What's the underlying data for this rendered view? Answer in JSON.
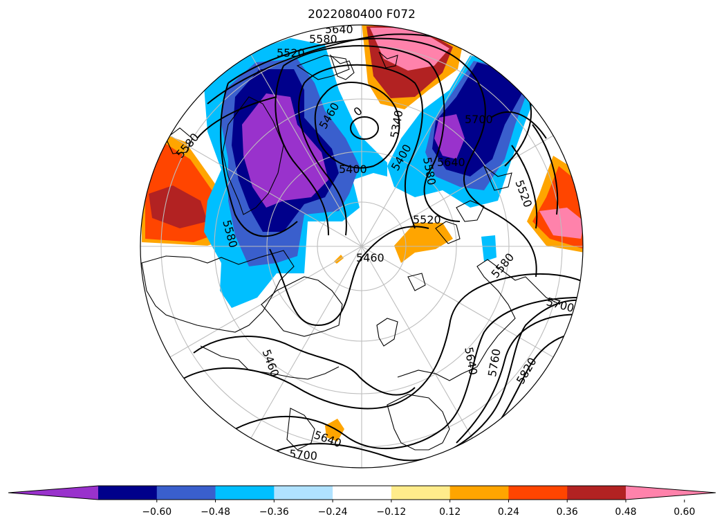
{
  "title": "2022080400 F072",
  "colorbar": {
    "colors": [
      "#9932cc",
      "#00008b",
      "#3a5fcd",
      "#00bfff",
      "#b0e2ff",
      "#ffffff",
      "#ffec8b",
      "#ffa500",
      "#ff4500",
      "#b22222",
      "#ff82ab"
    ],
    "tick_labels": [
      "−0.60",
      "−0.48",
      "−0.36",
      "−0.24",
      "−0.12",
      "0.12",
      "0.24",
      "0.36",
      "0.48",
      "0.60"
    ]
  },
  "contour_labels": [
    {
      "id": "l1",
      "text": "5640"
    },
    {
      "id": "l2",
      "text": "5580"
    },
    {
      "id": "l3",
      "text": "5520"
    },
    {
      "id": "l4",
      "text": "5580"
    },
    {
      "id": "l5",
      "text": "5460"
    },
    {
      "id": "l6",
      "text": "5400"
    },
    {
      "id": "l7",
      "text": "5340"
    },
    {
      "id": "l8",
      "text": "5400"
    },
    {
      "id": "l9",
      "text": "5640"
    },
    {
      "id": "l10",
      "text": "5580"
    },
    {
      "id": "l11",
      "text": "5700"
    },
    {
      "id": "l12",
      "text": "5520"
    },
    {
      "id": "l13",
      "text": "5520"
    },
    {
      "id": "l14",
      "text": "5460"
    },
    {
      "id": "l15",
      "text": "5580"
    },
    {
      "id": "l16",
      "text": "5700"
    },
    {
      "id": "l17",
      "text": "5460"
    },
    {
      "id": "l18",
      "text": "5640"
    },
    {
      "id": "l19",
      "text": "5760"
    },
    {
      "id": "l20",
      "text": "5820"
    },
    {
      "id": "l21",
      "text": "5640"
    },
    {
      "id": "l22",
      "text": "5700"
    },
    {
      "id": "l23",
      "text": "5580"
    },
    {
      "id": "l24",
      "text": "0"
    }
  ]
}
